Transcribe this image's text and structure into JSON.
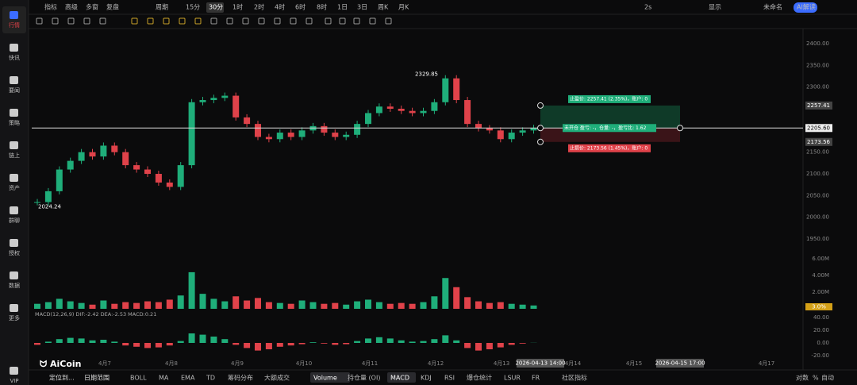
{
  "toolbar": {
    "left": [
      "指标",
      "高级",
      "多窗",
      "复盘",
      "周期"
    ],
    "periods": [
      "15分",
      "30分",
      "1时",
      "2时",
      "4时",
      "6时",
      "8时",
      "1日",
      "3日",
      "周K",
      "月K"
    ],
    "active_period": "30分",
    "right": [
      "2s",
      "显示",
      "未命名",
      "AI解读"
    ]
  },
  "sidebar": [
    "行情",
    "快讯",
    "要闻",
    "策略",
    "链上",
    "资产",
    "群聊",
    "授权",
    "数据",
    "更多",
    "VIP"
  ],
  "bottom_bar": {
    "left": [
      "定位到...",
      "日期范围"
    ],
    "indicators": [
      "BOLL",
      "MA",
      "EMA",
      "TD",
      "筹码分布",
      "大额成交",
      "Volume",
      "持仓量 (OI)",
      "MACD",
      "KDJ",
      "RSI",
      "爆仓统计",
      "LSUR",
      "FR",
      "社区指标"
    ],
    "active": [
      "Volume",
      "MACD"
    ],
    "right": [
      "对数",
      "%",
      "自动"
    ]
  },
  "chart_data": {
    "type": "candlestick",
    "closes": [
      2035,
      2060,
      2110,
      2130,
      2150,
      2140,
      2165,
      2150,
      2120,
      2110,
      2100,
      2080,
      2070,
      2120,
      2265,
      2270,
      2275,
      2280,
      2230,
      2215,
      2185,
      2180,
      2195,
      2185,
      2200,
      2210,
      2195,
      2185,
      2190,
      2215,
      2240,
      2255,
      2250,
      2245,
      2240,
      2245,
      2265,
      2320,
      2270,
      2215,
      2205,
      2200,
      2180,
      2195,
      2200,
      2205.6
    ],
    "ylim": [
      1930,
      2420
    ],
    "yticks": [
      {
        "value": 2400,
        "label": "2400.00"
      },
      {
        "value": 2350,
        "label": "2350.00"
      },
      {
        "value": 2300,
        "label": "2300.00"
      },
      {
        "value": 2150,
        "label": "2150.00"
      },
      {
        "value": 2100,
        "label": "2100.00"
      },
      {
        "value": 2050,
        "label": "2050.00"
      },
      {
        "value": 2000,
        "label": "2000.00"
      },
      {
        "value": 1950,
        "label": "1950.00"
      }
    ],
    "high": {
      "value": 2329.85,
      "label": "2329.85"
    },
    "low": {
      "value": 2024.24,
      "label": "2024.24"
    },
    "position": {
      "entry": {
        "value": 2205.6,
        "label": "2205.60"
      },
      "take_profit": {
        "value": 2257.41,
        "label": "2257.41"
      },
      "stop_loss": {
        "value": 2173.56,
        "label": "2173.56"
      },
      "tp_text": "止盈价: 2257.41 (2.35%)，账户: 0",
      "entry_text": "未开仓 盈亏: -，仓量: -，盈亏比: 1.62",
      "sl_text": "止损价: 2173.56 (1.45%)，账户: 0"
    },
    "x_labels": [
      "4月7",
      "4月8",
      "4月9",
      "4月10",
      "4月11",
      "4月12",
      "4月13",
      "4月14",
      "4月15",
      "4月17"
    ],
    "crosshair_labels": [
      "2026-04-13 14:00",
      "2026-04-15 17:00"
    ],
    "up_color": "#1fae7a",
    "down_color": "#e0424a",
    "volume": {
      "values": [
        0.6,
        0.8,
        1.2,
        0.9,
        0.7,
        0.5,
        1.0,
        0.6,
        0.8,
        0.7,
        0.9,
        0.8,
        1.1,
        1.6,
        4.4,
        1.8,
        1.2,
        0.9,
        1.5,
        1.0,
        1.3,
        0.8,
        0.7,
        0.6,
        1.0,
        0.8,
        0.6,
        0.7,
        0.5,
        0.9,
        1.1,
        0.8,
        0.6,
        0.7,
        0.6,
        0.8,
        1.5,
        3.7,
        2.6,
        1.4,
        0.9,
        0.7,
        0.8,
        0.6,
        0.5,
        0.4
      ],
      "ylim": [
        0,
        6.3
      ],
      "yticks": [
        {
          "value": 2,
          "label": "2.00M"
        },
        {
          "value": 4,
          "label": "4.00M"
        },
        {
          "value": 6,
          "label": "6.00M"
        }
      ],
      "last_label": "3.0%"
    },
    "macd": {
      "title": "MACD(12,26,9)  DIF:-2.42  DEA:-2.53  MACD:0.21",
      "values": [
        -3,
        2,
        6,
        8,
        7,
        4,
        5,
        2,
        -4,
        -6,
        -8,
        -7,
        -4,
        3,
        15,
        13,
        10,
        6,
        -3,
        -8,
        -12,
        -10,
        -6,
        -4,
        -2,
        1,
        -1,
        -3,
        -2,
        3,
        7,
        9,
        7,
        4,
        2,
        3,
        6,
        12,
        4,
        -8,
        -12,
        -10,
        -7,
        -3,
        -1,
        0.21
      ],
      "ylim": [
        -25,
        45
      ],
      "yticks": [
        {
          "value": 40,
          "label": "40.00"
        },
        {
          "value": 20,
          "label": "20.00"
        },
        {
          "value": 0,
          "label": "0.00"
        },
        {
          "value": -20,
          "label": "-20.00"
        }
      ]
    }
  }
}
